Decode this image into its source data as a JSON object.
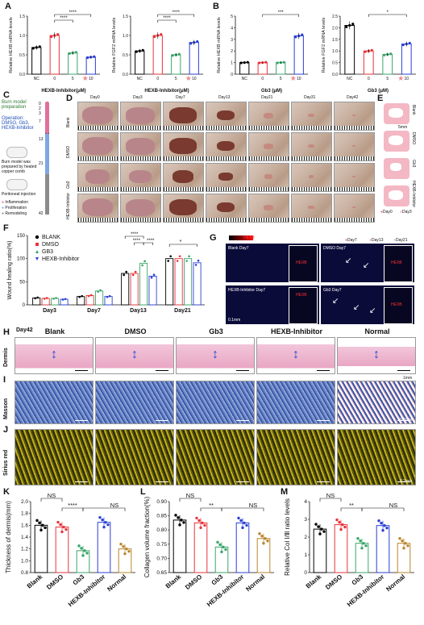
{
  "panels": {
    "A": "A",
    "B": "B",
    "C": "C",
    "D": "D",
    "E": "E",
    "F": "F",
    "G": "G",
    "H": "H",
    "I": "I",
    "J": "J",
    "K": "K",
    "L": "L",
    "M": "M"
  },
  "a1": {
    "ylabel": "Relative HEXB mRNA levels",
    "xlabel": "HEXB-Inhibitor(μM)",
    "ticks": [
      "NC",
      "0",
      "5",
      "10"
    ],
    "yticks": [
      "0.0",
      "0.5",
      "1.0",
      "1.5"
    ],
    "sig": [
      "****",
      "****"
    ]
  },
  "a2": {
    "ylabel": "Relative FGF2 mRNA levels",
    "xlabel": "HEXB-Inhibitor(μM)",
    "ticks": [
      "NC",
      "0",
      "5",
      "10"
    ],
    "yticks": [
      "0.0",
      "0.5",
      "1.0",
      "1.5"
    ],
    "sig": [
      "****",
      "****"
    ]
  },
  "b1": {
    "ylabel": "Relative HEXB mRNA levels",
    "xlabel": "Gb3 (μM)",
    "ticks": [
      "NC",
      "0",
      "5",
      "10"
    ],
    "yticks": [
      "0",
      "1",
      "2",
      "3",
      "4",
      "5"
    ],
    "sig": [
      "***"
    ]
  },
  "b2": {
    "ylabel": "Relative FGF2 mRNA levels",
    "xlabel": "Gb3 (μM)",
    "ticks": [
      "NC",
      "0",
      "5",
      "10"
    ],
    "yticks": [
      "0.0",
      "0.5",
      "1.0",
      "1.5",
      "2.0",
      "2.5"
    ],
    "sig": [
      "*"
    ]
  },
  "c": {
    "burn": "Burn model preparation",
    "operation": "Operation: DMSO, Gb3, HEXB-Inhibitor",
    "days": [
      "0",
      "2",
      "3",
      "7",
      "13",
      "21",
      "42"
    ],
    "note1": "Burn model was prepared by heated copper comb",
    "note2": "Peritoneal injection",
    "legend": [
      "Inflammation",
      "Proliferation",
      "Remodeling"
    ]
  },
  "d": {
    "days": [
      "Day0",
      "Day3",
      "Day7",
      "Day13",
      "Day21",
      "Day31",
      "Day42"
    ],
    "rows": [
      "Blank",
      "DMSO",
      "Gb3",
      "HEXB-Inhibitor"
    ]
  },
  "e": {
    "rows": [
      "Blank",
      "DMSO",
      "Gb3",
      "HEXB-Inhibitor"
    ],
    "scale": "5mm",
    "legend": [
      "Day0",
      "Day3",
      "Day7",
      "Day13",
      "Day21"
    ]
  },
  "f": {
    "ylabel": "Wound healing ratio(%)",
    "yticks": [
      "0",
      "50",
      "100",
      "150"
    ],
    "groups": [
      "Day3",
      "Day7",
      "Day13",
      "Day21"
    ],
    "legend": [
      "BLANK",
      "DMSO",
      "GB3",
      "HEXB-Inhibitor"
    ],
    "sig": [
      "****",
      "****",
      "****",
      "*"
    ]
  },
  "g": {
    "header": "HEXB",
    "legend": [
      "Day7",
      "Day13",
      "Day21"
    ],
    "panels": [
      "Blank Day7",
      "DMSO Day7",
      "HEXB-Inhibitor Day7",
      "Gb3 Day7"
    ],
    "inset": "HEXB",
    "scale": "0.1mm"
  },
  "h": {
    "day": "Day42",
    "cols": [
      "Blank",
      "DMSO",
      "Gb3",
      "HEXB-Inhibitor",
      "Normal"
    ],
    "row": "Dermis",
    "scale": "1mm"
  },
  "i": {
    "row": "Masson",
    "scale": "0.2mm"
  },
  "j": {
    "row": "Sirius red",
    "scale": "0.2mm"
  },
  "k": {
    "ylabel": "Thickness of dermis(mm)",
    "yticks": [
      "0.8",
      "1.0",
      "1.2",
      "1.4",
      "1.6",
      "1.8",
      "2.0"
    ],
    "xticks": [
      "Blank",
      "DMSO",
      "Gb3",
      "HEXB-Inhibitor",
      "Normal"
    ],
    "sig": [
      "NS",
      "****",
      "NS"
    ]
  },
  "l": {
    "ylabel": "Collagen volume fraction(%)",
    "yticks": [
      "0.65",
      "0.70",
      "0.75",
      "0.80",
      "0.85",
      "0.90"
    ],
    "xticks": [
      "Blank",
      "DMSO",
      "Gb3",
      "HEXB-Inhibitor",
      "Normal"
    ],
    "sig": [
      "NS",
      "**",
      "NS"
    ]
  },
  "m": {
    "ylabel": "Relative Col I/Ⅲ ratio levels",
    "yticks": [
      "0",
      "1",
      "2",
      "3",
      "4"
    ],
    "xticks": [
      "Blank",
      "DMSO",
      "Gb3",
      "HEXB-Inhibitor",
      "Normal"
    ],
    "sig": [
      "NS",
      "**",
      "NS"
    ]
  },
  "colors": {
    "black": "#000000",
    "red": "#e8333a",
    "green": "#3aa66a",
    "blue": "#2a3fd6",
    "orange": "#b8862c",
    "star": "#f08a8f"
  },
  "chart_data": [
    {
      "type": "bar",
      "panel": "A-left",
      "categories": [
        "NC",
        "0",
        "5",
        "10"
      ],
      "values": [
        0.69,
        1.0,
        0.55,
        0.44
      ],
      "ylim": [
        0,
        1.5
      ],
      "ylabel": "Relative HEXB mRNA levels",
      "xlabel": "HEXB-Inhibitor(μM)"
    },
    {
      "type": "bar",
      "panel": "A-right",
      "categories": [
        "NC",
        "0",
        "5",
        "10"
      ],
      "values": [
        0.6,
        1.0,
        0.5,
        0.82
      ],
      "ylim": [
        0,
        1.5
      ],
      "ylabel": "Relative FGF2 mRNA levels",
      "xlabel": "HEXB-Inhibitor(μM)"
    },
    {
      "type": "bar",
      "panel": "B-left",
      "categories": [
        "NC",
        "0",
        "5",
        "10"
      ],
      "values": [
        1.0,
        1.0,
        1.0,
        3.3
      ],
      "ylim": [
        0,
        5
      ],
      "ylabel": "Relative HEXB mRNA levels",
      "xlabel": "Gb3 (μM)"
    },
    {
      "type": "bar",
      "panel": "B-right",
      "categories": [
        "NC",
        "0",
        "5",
        "10"
      ],
      "values": [
        2.1,
        1.0,
        0.85,
        1.3
      ],
      "ylim": [
        0,
        2.5
      ],
      "ylabel": "Relative FGF2 mRNA levels",
      "xlabel": "Gb3 (μM)"
    },
    {
      "type": "bar",
      "panel": "F",
      "categories": [
        "Day3",
        "Day7",
        "Day13",
        "Day21"
      ],
      "series": [
        {
          "name": "BLANK",
          "values": [
            15,
            18,
            68,
            100
          ]
        },
        {
          "name": "DMSO",
          "values": [
            14,
            20,
            68,
            100
          ]
        },
        {
          "name": "GB3",
          "values": [
            14,
            30,
            90,
            100
          ]
        },
        {
          "name": "HEXB-Inhibitor",
          "values": [
            12,
            18,
            62,
            91
          ]
        }
      ],
      "ylim": [
        0,
        150
      ],
      "ylabel": "Wound healing ratio(%)"
    },
    {
      "type": "bar",
      "panel": "K",
      "categories": [
        "Blank",
        "DMSO",
        "Gb3",
        "HEXB-Inhibitor",
        "Normal"
      ],
      "values": [
        1.6,
        1.57,
        1.17,
        1.65,
        1.2
      ],
      "ylim": [
        0.8,
        2.0
      ],
      "ylabel": "Thickness of dermis(mm)"
    },
    {
      "type": "bar",
      "panel": "L",
      "categories": [
        "Blank",
        "DMSO",
        "Gb3",
        "HEXB-Inhibitor",
        "Normal"
      ],
      "values": [
        0.835,
        0.825,
        0.74,
        0.825,
        0.77
      ],
      "ylim": [
        0.65,
        0.9
      ],
      "ylabel": "Collagen volume fraction(%)"
    },
    {
      "type": "bar",
      "panel": "M",
      "categories": [
        "Blank",
        "DMSO",
        "Gb3",
        "HEXB-Inhibitor",
        "Normal"
      ],
      "values": [
        2.45,
        2.7,
        1.65,
        2.65,
        1.65
      ],
      "ylim": [
        0,
        4
      ],
      "ylabel": "Relative Col I/Ⅲ ratio levels"
    }
  ]
}
